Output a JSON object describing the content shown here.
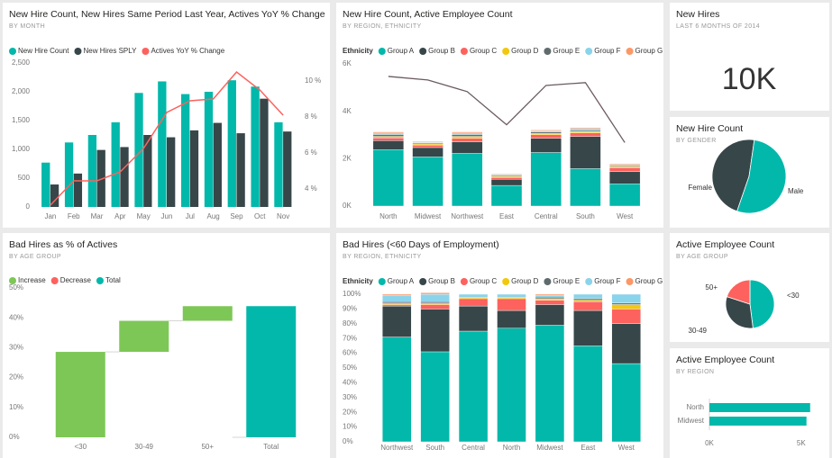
{
  "chart_data": [
    {
      "type": "combo",
      "title": "New Hire Count, New Hires Same Period Last Year, Actives YoY % Change",
      "subtitle": "BY MONTH",
      "categories": [
        "Jan",
        "Feb",
        "Mar",
        "Apr",
        "May",
        "Jun",
        "Jul",
        "Aug",
        "Sep",
        "Oct",
        "Nov"
      ],
      "series": [
        {
          "name": "New Hire Count",
          "color": "#01b8aa",
          "values": [
            770,
            1120,
            1250,
            1470,
            1980,
            2180,
            1960,
            2000,
            2200,
            2090,
            1470
          ]
        },
        {
          "name": "New Hires SPLY",
          "color": "#374649",
          "values": [
            390,
            580,
            990,
            1040,
            1250,
            1210,
            1330,
            1460,
            1280,
            1880,
            1310
          ]
        },
        {
          "name": "Actives YoY % Change",
          "color": "#fd625e",
          "axis": "y2",
          "values": [
            3.1,
            4.45,
            4.45,
            4.95,
            6.25,
            8.25,
            8.9,
            9.0,
            10.5,
            9.5,
            8.1
          ]
        }
      ],
      "ylim": [
        0,
        2500
      ],
      "yticks": [
        0,
        500,
        {
          "value": 1000,
          "label": "1,000"
        },
        {
          "value": 1500,
          "label": "1,500"
        },
        {
          "value": 2000,
          "label": "2,000"
        },
        {
          "value": 2500,
          "label": "2,500"
        }
      ],
      "y2lim": [
        3,
        11
      ],
      "y2ticks": [
        {
          "value": 4,
          "label": "4 %"
        },
        {
          "value": 6,
          "label": "6 %"
        },
        {
          "value": 8,
          "label": "8 %"
        },
        {
          "value": 10,
          "label": "10 %"
        }
      ],
      "grid": false
    },
    {
      "type": "stacked",
      "title": "New Hire Count, Active Employee Count",
      "subtitle": "BY REGION, ETHNICITY",
      "legend_title": "Ethnicity",
      "categories": [
        "North",
        "Midwest",
        "Northwest",
        "East",
        "Central",
        "South",
        "West"
      ],
      "series": [
        {
          "name": "Group A",
          "color": "#01b8aa",
          "values": [
            2380,
            2080,
            2230,
            870,
            2260,
            1580,
            940
          ]
        },
        {
          "name": "Group B",
          "color": "#374649",
          "values": [
            380,
            390,
            480,
            260,
            600,
            1360,
            510
          ]
        },
        {
          "name": "Group C",
          "color": "#fd625e",
          "values": [
            120,
            100,
            150,
            80,
            150,
            150,
            170
          ]
        },
        {
          "name": "Group D",
          "color": "#f2c80f",
          "values": [
            60,
            50,
            80,
            40,
            60,
            50,
            40
          ]
        },
        {
          "name": "Group E",
          "color": "#5f6b6d",
          "values": [
            80,
            40,
            80,
            40,
            60,
            50,
            40
          ]
        },
        {
          "name": "Group F",
          "color": "#8ad4eb",
          "values": [
            60,
            30,
            60,
            40,
            40,
            80,
            40
          ]
        },
        {
          "name": "Group G",
          "color": "#fe9666",
          "values": [
            50,
            30,
            50,
            30,
            40,
            40,
            40
          ]
        }
      ],
      "line": {
        "color": "#6b5a5f",
        "values": [
          5470,
          5320,
          4830,
          3430,
          5090,
          5210,
          2680
        ]
      },
      "ylim": [
        0,
        6000
      ],
      "yticks": [
        {
          "value": 0,
          "label": "0K"
        },
        {
          "value": 2000,
          "label": "2K"
        },
        {
          "value": 4000,
          "label": "4K"
        },
        {
          "value": 6000,
          "label": "6K"
        }
      ],
      "grid": false
    },
    {
      "type": "card",
      "title": "New Hires",
      "subtitle": "LAST 6 MONTHS OF 2014",
      "values": [
        10000
      ],
      "value_labels": [
        "10K"
      ]
    },
    {
      "type": "pie",
      "title": "New Hire Count",
      "subtitle": "BY GENDER",
      "categories": [
        "Female",
        "Male"
      ],
      "values": [
        47,
        53
      ],
      "colors": [
        "#374649",
        "#01b8aa"
      ]
    },
    {
      "type": "waterfall",
      "title": "Bad Hires as % of Actives",
      "subtitle": "BY AGE GROUP",
      "legend": [
        {
          "name": "Increase",
          "color": "#7dc756"
        },
        {
          "name": "Decrease",
          "color": "#fd625e"
        },
        {
          "name": "Total",
          "color": "#01b8aa"
        }
      ],
      "categories": [
        "<30",
        "30-49",
        "50+",
        "Total"
      ],
      "values": [
        28.6,
        10.4,
        4.9,
        43.9
      ],
      "ylim": [
        0,
        50
      ],
      "yticks": [
        {
          "value": 0,
          "label": "0%"
        },
        {
          "value": 10,
          "label": "10%"
        },
        {
          "value": 20,
          "label": "20%"
        },
        {
          "value": 30,
          "label": "30%"
        },
        {
          "value": 40,
          "label": "40%"
        },
        {
          "value": 50,
          "label": "50%"
        }
      ],
      "grid": false
    },
    {
      "type": "stacked",
      "title": "Bad Hires (<60 Days of Employment)",
      "subtitle": "BY REGION, ETHNICITY",
      "legend_title": "Ethnicity",
      "categories": [
        "Northwest",
        "South",
        "Central",
        "North",
        "Midwest",
        "East",
        "West"
      ],
      "series": [
        {
          "name": "Group A",
          "color": "#01b8aa",
          "values": [
            71,
            61,
            75,
            77,
            79,
            65,
            53
          ]
        },
        {
          "name": "Group B",
          "color": "#374649",
          "values": [
            21,
            29,
            17,
            12,
            14,
            24,
            27
          ]
        },
        {
          "name": "Group C",
          "color": "#fd625e",
          "values": [
            1,
            3,
            5,
            8,
            3,
            6,
            10
          ]
        },
        {
          "name": "Group D",
          "color": "#f2c80f",
          "values": [
            1,
            1,
            1,
            1,
            1,
            1,
            3
          ]
        },
        {
          "name": "Group E",
          "color": "#5f6b6d",
          "values": [
            1,
            1,
            0,
            0,
            1,
            1,
            1
          ]
        },
        {
          "name": "Group F",
          "color": "#8ad4eb",
          "values": [
            4,
            5,
            2,
            2,
            1,
            3,
            6
          ]
        },
        {
          "name": "Group G",
          "color": "#fe9666",
          "values": [
            1,
            1,
            0,
            0,
            1,
            0,
            0
          ]
        }
      ],
      "ylim": [
        0,
        100
      ],
      "yticks": [
        {
          "value": 0,
          "label": "0%"
        },
        {
          "value": 10,
          "label": "10%"
        },
        {
          "value": 20,
          "label": "20%"
        },
        {
          "value": 30,
          "label": "30%"
        },
        {
          "value": 40,
          "label": "40%"
        },
        {
          "value": 50,
          "label": "50%"
        },
        {
          "value": 60,
          "label": "60%"
        },
        {
          "value": 70,
          "label": "70%"
        },
        {
          "value": 80,
          "label": "80%"
        },
        {
          "value": 90,
          "label": "90%"
        },
        {
          "value": 100,
          "label": "100%"
        }
      ],
      "grid": false
    },
    {
      "type": "pie",
      "title": "Active Employee Count",
      "subtitle": "BY AGE GROUP",
      "categories": [
        "<30",
        "30-49",
        "50+"
      ],
      "values": [
        48,
        32,
        20
      ],
      "colors": [
        "#01b8aa",
        "#374649",
        "#fd625e"
      ]
    },
    {
      "type": "hbar",
      "title": "Active Employee Count",
      "subtitle": "BY REGION",
      "categories": [
        "North",
        "Midwest"
      ],
      "values": [
        5490,
        5290
      ],
      "color": "#01b8aa",
      "xlim": [
        0,
        5600
      ],
      "xticks": [
        {
          "value": 0,
          "label": "0K"
        },
        {
          "value": 5000,
          "label": "5K"
        }
      ]
    }
  ]
}
